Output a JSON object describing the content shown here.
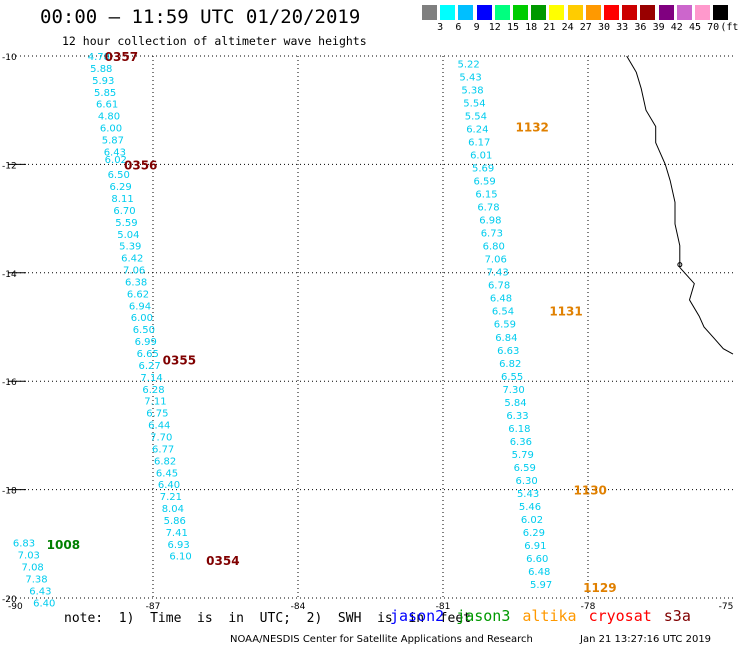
{
  "title": "00:00 – 11:59 UTC 01/20/2019",
  "subtitle": "12 hour collection of altimeter wave heights",
  "legend": {
    "values": [
      "3",
      "6",
      "9",
      "12",
      "15",
      "18",
      "21",
      "24",
      "27",
      "30",
      "33",
      "36",
      "39",
      "42",
      "45",
      "70",
      "(ft)"
    ],
    "colors": [
      "#7f7f7f",
      "#00ffff",
      "#00bfff",
      "#0000ff",
      "#00ff7f",
      "#00cc00",
      "#009900",
      "#ffff00",
      "#ffcc00",
      "#ff9900",
      "#ff0000",
      "#cc0000",
      "#990000",
      "#800080",
      "#cc66cc",
      "#ff99cc",
      "#000000"
    ]
  },
  "axes": {
    "lat_labels": [
      "-10",
      "-12",
      "-14",
      "-16",
      "-18",
      "-20"
    ],
    "lon_labels": [
      "-90",
      "-87",
      "-84",
      "-81",
      "-78",
      "-75"
    ]
  },
  "tracks": [
    {
      "id": "left",
      "points": [
        [
          "4.78",
          -10.0,
          -88.35
        ],
        [
          "5.88",
          -10.22,
          -88.3
        ],
        [
          "5.93",
          -10.44,
          -88.26
        ],
        [
          "5.85",
          -10.66,
          -88.22
        ],
        [
          "6.61",
          -10.88,
          -88.18
        ],
        [
          "4.80",
          -11.1,
          -88.14
        ],
        [
          "6.00",
          -11.32,
          -88.1
        ],
        [
          "5.87",
          -11.54,
          -88.06
        ],
        [
          "6.43",
          -11.76,
          -88.02
        ],
        [
          "6.02",
          -11.9,
          -88.0
        ],
        [
          "6.50",
          -12.18,
          -87.94
        ],
        [
          "6.29",
          -12.4,
          -87.9
        ],
        [
          "8.11",
          -12.62,
          -87.86
        ],
        [
          "6.70",
          -12.84,
          -87.82
        ],
        [
          "5.59",
          -13.06,
          -87.78
        ],
        [
          "5.04",
          -13.28,
          -87.74
        ],
        [
          "5.39",
          -13.5,
          -87.7
        ],
        [
          "6.42",
          -13.72,
          -87.66
        ],
        [
          "7.06",
          -13.94,
          -87.62
        ],
        [
          "6.38",
          -14.16,
          -87.58
        ],
        [
          "6.62",
          -14.38,
          -87.54
        ],
        [
          "6.94",
          -14.6,
          -87.5
        ],
        [
          "6.00",
          -14.82,
          -87.46
        ],
        [
          "6.50",
          -15.04,
          -87.42
        ],
        [
          "6.99",
          -15.26,
          -87.38
        ],
        [
          "6.65",
          -15.48,
          -87.34
        ],
        [
          "6.27",
          -15.7,
          -87.3
        ],
        [
          "7.14",
          -15.92,
          -87.26
        ],
        [
          "6.28",
          -16.14,
          -87.22
        ],
        [
          "7.11",
          -16.36,
          -87.18
        ],
        [
          "6.75",
          -16.58,
          -87.14
        ],
        [
          "6.44",
          -16.8,
          -87.1
        ],
        [
          "7.70",
          -17.02,
          -87.06
        ],
        [
          "6.77",
          -17.24,
          -87.02
        ],
        [
          "6.82",
          -17.46,
          -86.98
        ],
        [
          "6.45",
          -17.68,
          -86.94
        ],
        [
          "6.40",
          -17.9,
          -86.9
        ],
        [
          "7.21",
          -18.12,
          -86.86
        ],
        [
          "8.04",
          -18.34,
          -86.82
        ],
        [
          "5.86",
          -18.56,
          -86.78
        ],
        [
          "7.41",
          -18.78,
          -86.74
        ],
        [
          "6.93",
          -19.0,
          -86.7
        ],
        [
          "6.10",
          -19.22,
          -86.66
        ]
      ],
      "times": [
        [
          "0357",
          -10.0,
          -88.0,
          "#800000"
        ],
        [
          "0356",
          -12.0,
          -87.6,
          "#800000"
        ],
        [
          "0355",
          -15.6,
          -86.8,
          "#800000"
        ],
        [
          "0354",
          -19.3,
          -85.9,
          "#800000"
        ]
      ]
    },
    {
      "id": "right",
      "points": [
        [
          "5.22",
          -10.14,
          -80.7
        ],
        [
          "5.43",
          -10.38,
          -80.66
        ],
        [
          "5.38",
          -10.62,
          -80.62
        ],
        [
          "5.54",
          -10.86,
          -80.58
        ],
        [
          "5.54",
          -11.1,
          -80.55
        ],
        [
          "6.24",
          -11.34,
          -80.52
        ],
        [
          "6.17",
          -11.58,
          -80.48
        ],
        [
          "6.01",
          -11.82,
          -80.44
        ],
        [
          "5.69",
          -12.06,
          -80.4
        ],
        [
          "6.59",
          -12.3,
          -80.37
        ],
        [
          "6.15",
          -12.54,
          -80.33
        ],
        [
          "6.78",
          -12.78,
          -80.29
        ],
        [
          "6.98",
          -13.02,
          -80.25
        ],
        [
          "6.73",
          -13.26,
          -80.22
        ],
        [
          "6.80",
          -13.5,
          -80.18
        ],
        [
          "7.06",
          -13.74,
          -80.14
        ],
        [
          "7.43",
          -13.98,
          -80.1
        ],
        [
          "6.78",
          -14.22,
          -80.07
        ],
        [
          "6.48",
          -14.46,
          -80.03
        ],
        [
          "6.54",
          -14.7,
          -79.99
        ],
        [
          "6.59",
          -14.94,
          -79.95
        ],
        [
          "6.84",
          -15.18,
          -79.92
        ],
        [
          "6.63",
          -15.42,
          -79.88
        ],
        [
          "6.82",
          -15.66,
          -79.84
        ],
        [
          "6.55",
          -15.9,
          -79.8
        ],
        [
          "7.30",
          -16.14,
          -79.77
        ],
        [
          "5.84",
          -16.38,
          -79.73
        ],
        [
          "6.33",
          -16.62,
          -79.69
        ],
        [
          "6.18",
          -16.86,
          -79.65
        ],
        [
          "6.36",
          -17.1,
          -79.62
        ],
        [
          "5.79",
          -17.34,
          -79.58
        ],
        [
          "6.59",
          -17.58,
          -79.54
        ],
        [
          "6.30",
          -17.82,
          -79.5
        ],
        [
          "5.43",
          -18.06,
          -79.47
        ],
        [
          "5.46",
          -18.3,
          -79.43
        ],
        [
          "6.02",
          -18.54,
          -79.39
        ],
        [
          "6.29",
          -18.78,
          -79.35
        ],
        [
          "6.91",
          -19.02,
          -79.32
        ],
        [
          "6.60",
          -19.26,
          -79.28
        ],
        [
          "6.48",
          -19.5,
          -79.24
        ],
        [
          "5.97",
          -19.74,
          -79.2
        ]
      ],
      "times": [
        [
          "1132",
          -11.3,
          -79.5,
          "#e08000"
        ],
        [
          "1131",
          -14.7,
          -78.8,
          "#e08000"
        ],
        [
          "1130",
          -18.0,
          -78.3,
          "#e08000"
        ],
        [
          "1129",
          -19.8,
          -78.1,
          "#e08000"
        ]
      ]
    },
    {
      "id": "corner",
      "points": [
        [
          "6.83",
          -18.98,
          -89.9
        ],
        [
          "7.03",
          -19.2,
          -89.8
        ],
        [
          "7.08",
          -19.42,
          -89.72
        ],
        [
          "7.38",
          -19.64,
          -89.64
        ],
        [
          "6.43",
          -19.86,
          -89.56
        ],
        [
          "6.40",
          -20.08,
          -89.48
        ]
      ],
      "times": [
        [
          "1008",
          -19.0,
          -89.2,
          "#008000"
        ]
      ]
    }
  ],
  "note": "note:  1)  Time  is  in  UTC;  2)  SWH  is  in  feet",
  "satellites": [
    {
      "name": "jason2",
      "color": "#0000ff"
    },
    {
      "name": "jason3",
      "color": "#009900"
    },
    {
      "name": "altika",
      "color": "#ff9900"
    },
    {
      "name": "cryosat",
      "color": "#ff0000"
    },
    {
      "name": "s3a",
      "color": "#800000"
    }
  ],
  "credit": "NOAA/NESDIS Center for Satellite Applications and Research",
  "datestamp": "Jan 21 13:27:16 UTC 2019",
  "swh_color": "#00ccee"
}
